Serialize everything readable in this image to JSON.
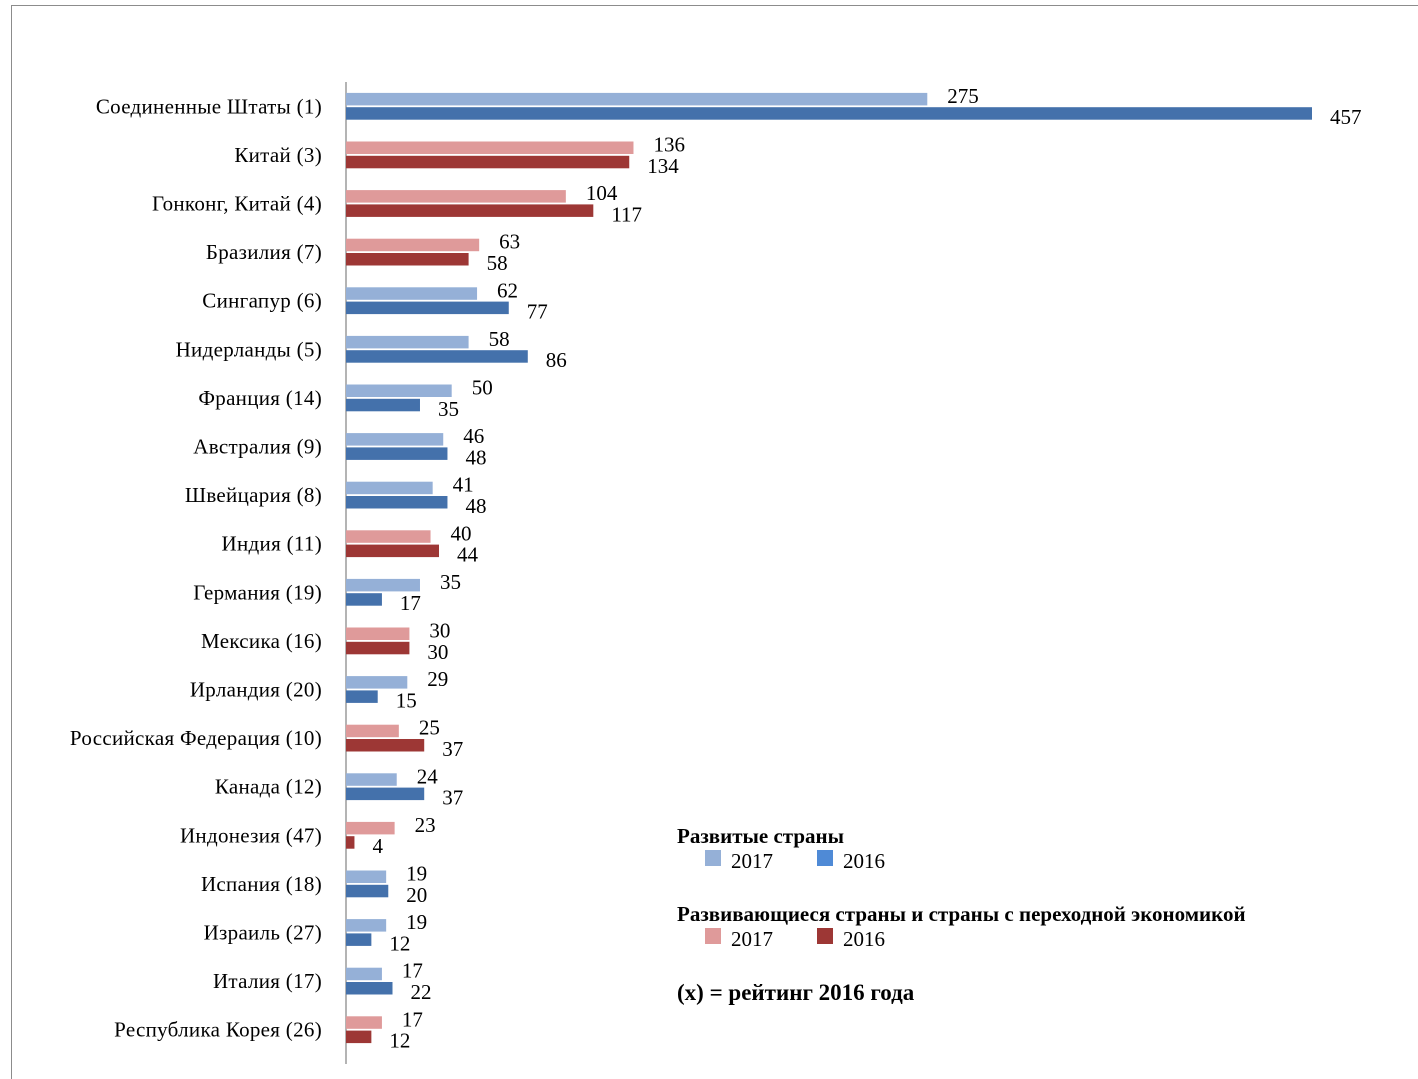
{
  "chart_data": {
    "type": "bar",
    "orientation": "horizontal",
    "categories": [
      "Соединенные Штаты (1)",
      "Китай (3)",
      "Гонконг, Китай (4)",
      "Бразилия (7)",
      "Сингапур (6)",
      "Нидерланды (5)",
      "Франция (14)",
      "Австралия (9)",
      "Швейцария (8)",
      "Индия (11)",
      "Германия (19)",
      "Мексика (16)",
      "Ирландия (20)",
      "Российская Федерация (10)",
      "Канада (12)",
      "Индонезия (47)",
      "Испания (18)",
      "Израиль (27)",
      "Италия (17)",
      "Республика Корея (26)"
    ],
    "group": [
      "developed",
      "developing",
      "developing",
      "developing",
      "developed",
      "developed",
      "developed",
      "developed",
      "developed",
      "developing",
      "developed",
      "developing",
      "developed",
      "developing",
      "developed",
      "developing",
      "developed",
      "developed",
      "developed",
      "developing"
    ],
    "series": [
      {
        "name": "2017",
        "values": [
          275,
          136,
          104,
          63,
          62,
          58,
          50,
          46,
          41,
          40,
          35,
          30,
          29,
          25,
          24,
          23,
          19,
          19,
          17,
          17
        ]
      },
      {
        "name": "2016",
        "values": [
          457,
          134,
          117,
          58,
          77,
          86,
          35,
          48,
          48,
          44,
          17,
          30,
          15,
          37,
          37,
          4,
          20,
          12,
          22,
          12
        ]
      }
    ],
    "xlim": [
      0,
      457
    ],
    "grid": false,
    "legend_position": "bottom-right"
  },
  "colors": {
    "developed_2017": "#95b0d7",
    "developed_2016": "#4471ab",
    "developing_2017": "#df9a9a",
    "developing_2016": "#9d3735",
    "developed_legend_2016": "#4f8ad6",
    "axis": "#8c8c8c"
  },
  "legend": {
    "developed": {
      "title": "Развитые страны",
      "year_2017": "2017",
      "year_2016": "2016"
    },
    "developing": {
      "title": "Развивающиеся страны и страны с переходной экономикой",
      "year_2017": "2017",
      "year_2016": "2016"
    },
    "note": "(x) = рейтинг 2016 года"
  }
}
